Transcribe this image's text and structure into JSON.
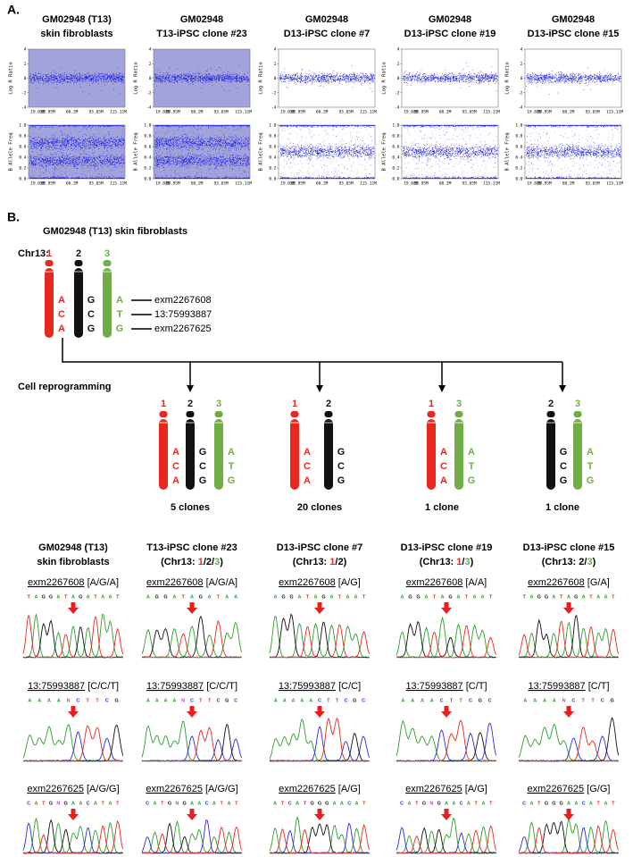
{
  "panel_a": {
    "label": "A.",
    "lrr_axis": "Log R Ratio",
    "baf_axis": "B Allele Freq",
    "lrr_ylim": [
      -4,
      4
    ],
    "lrr_ticks": [
      4,
      2,
      0,
      -2,
      -4
    ],
    "baf_ylim": [
      0,
      1
    ],
    "baf_ticks": [
      {
        "value": 1,
        "label": "1.0"
      },
      {
        "value": 0.8,
        "label": "0.8"
      },
      {
        "value": 0.6,
        "label": "0.6"
      },
      {
        "value": 0.4,
        "label": "0.4"
      },
      {
        "value": 0.2,
        "label": "0.2"
      },
      {
        "value": 0,
        "label": "0.0"
      }
    ],
    "x_ticks": [
      "19.02M",
      "02.95M",
      "60.2M",
      "93.65M",
      "115.11M"
    ],
    "samples": [
      {
        "title": [
          "GM02948 (T13)",
          "skin fibroblasts"
        ],
        "shaded": true,
        "lrr_level": 0,
        "baf_levels": [
          0,
          0.33,
          0.67,
          1
        ]
      },
      {
        "title": [
          "GM02948",
          "T13-iPSC clone #23"
        ],
        "shaded": true,
        "lrr_level": 0,
        "baf_levels": [
          0,
          0.33,
          0.67,
          1
        ]
      },
      {
        "title": [
          "GM02948",
          "D13-iPSC clone #7"
        ],
        "shaded": false,
        "lrr_level": 0,
        "baf_levels": [
          0,
          0.5,
          1
        ]
      },
      {
        "title": [
          "GM02948",
          "D13-iPSC clone #19"
        ],
        "shaded": false,
        "lrr_level": 0,
        "baf_levels": [
          0,
          0.5,
          1
        ]
      },
      {
        "title": [
          "GM02948",
          "D13-iPSC clone #15"
        ],
        "shaded": false,
        "lrr_level": 0,
        "baf_levels": [
          0,
          0.5,
          1
        ]
      }
    ]
  },
  "panel_b": {
    "label": "B.",
    "title": "GM02948 (T13) skin fibroblasts",
    "chr_label": "Chr13:",
    "chromosomes": [
      {
        "label": "1",
        "color": "#e8281e",
        "bases": [
          "A",
          "C",
          "A"
        ]
      },
      {
        "label": "2",
        "color": "#111111",
        "bases": [
          "G",
          "C",
          "G"
        ]
      },
      {
        "label": "3",
        "color": "#70ad47",
        "bases": [
          "A",
          "T",
          "G"
        ]
      }
    ],
    "markers": [
      "exm2267608",
      "13:75993887",
      "exm2267625"
    ],
    "process": "Cell reprogramming",
    "groups": [
      {
        "chromosomes": [
          "1",
          "2",
          "3"
        ],
        "count": "5 clones"
      },
      {
        "chromosomes": [
          "1",
          "2"
        ],
        "count": "20 clones"
      },
      {
        "chromosomes": [
          "1",
          "3"
        ],
        "count": "1 clone"
      },
      {
        "chromosomes": [
          "2",
          "3"
        ],
        "count": "1 clone"
      }
    ]
  },
  "panel_c": {
    "columns": [
      {
        "title": [
          "GM02948 (T13)",
          "skin fibroblasts"
        ],
        "subtitle": [],
        "markers": [
          {
            "name": "exm2267608",
            "genotype": " [A/G/A]",
            "sequence": "TAGGATAGATAAT"
          },
          {
            "name": "13:75993887",
            "genotype": " [C/C/T]",
            "sequence": "AAAANCTTCG"
          },
          {
            "name": "exm2267625",
            "genotype": " [A/G/G]",
            "sequence": "CATGNGAACATAT"
          }
        ]
      },
      {
        "title": [
          "T13-iPSC clone #23"
        ],
        "subtitle": [
          {
            "text": "(Chr13: "
          },
          {
            "text": "1",
            "color": "#e8281e"
          },
          {
            "text": "/"
          },
          {
            "text": "2"
          },
          {
            "text": "/"
          },
          {
            "text": "3",
            "color": "#70ad47"
          },
          {
            "text": ")"
          }
        ],
        "markers": [
          {
            "name": "exm2267608",
            "genotype": " [A/G/A]",
            "sequence": "AGGATAGATAA"
          },
          {
            "name": "13:75993887",
            "genotype": " [C/C/T]",
            "sequence": "AAAANCTTCGC"
          },
          {
            "name": "exm2267625",
            "genotype": " [A/G/G]",
            "sequence": "CATGNGAACATAT"
          }
        ]
      },
      {
        "title": [
          "D13-iPSC clone #7"
        ],
        "subtitle": [
          {
            "text": "(Chr13: "
          },
          {
            "text": "1",
            "color": "#e8281e"
          },
          {
            "text": "/"
          },
          {
            "text": "2"
          },
          {
            "text": ")"
          }
        ],
        "markers": [
          {
            "name": "exm2267608",
            "genotype": " [A/G]",
            "sequence": "AGGATAGATAAT"
          },
          {
            "name": "13:75993887",
            "genotype": " [C/C]",
            "sequence": "AAAAACTTCGC"
          },
          {
            "name": "exm2267625",
            "genotype": " [A/G]",
            "sequence": "ATCATGGGAACAT"
          }
        ]
      },
      {
        "title": [
          "D13-iPSC clone #19"
        ],
        "subtitle": [
          {
            "text": "(Chr13: "
          },
          {
            "text": "1",
            "color": "#e8281e"
          },
          {
            "text": "/"
          },
          {
            "text": "3",
            "color": "#70ad47"
          },
          {
            "text": ")"
          }
        ],
        "markers": [
          {
            "name": "exm2267608",
            "genotype": " [A/A]",
            "sequence": "AGGATAGATAAT"
          },
          {
            "name": "13:75993887",
            "genotype": " [C/T]",
            "sequence": "AAAACTTCGC"
          },
          {
            "name": "exm2267625",
            "genotype": " [A/G]",
            "sequence": "CATGNGAACATAT"
          }
        ]
      },
      {
        "title": [
          "D13-iPSC clone #15"
        ],
        "subtitle": [
          {
            "text": "(Chr13: "
          },
          {
            "text": "2"
          },
          {
            "text": "/"
          },
          {
            "text": "3",
            "color": "#70ad47"
          },
          {
            "text": ")"
          }
        ],
        "markers": [
          {
            "name": "exm2267608",
            "genotype": " [G/A]",
            "sequence": "TAGGATAGATAAT"
          },
          {
            "name": "13:75993887",
            "genotype": " [C/T]",
            "sequence": "AAAANCTTCG"
          },
          {
            "name": "exm2267625",
            "genotype": " [G/G]",
            "sequence": "CATGGGAACATAT"
          }
        ]
      }
    ]
  }
}
